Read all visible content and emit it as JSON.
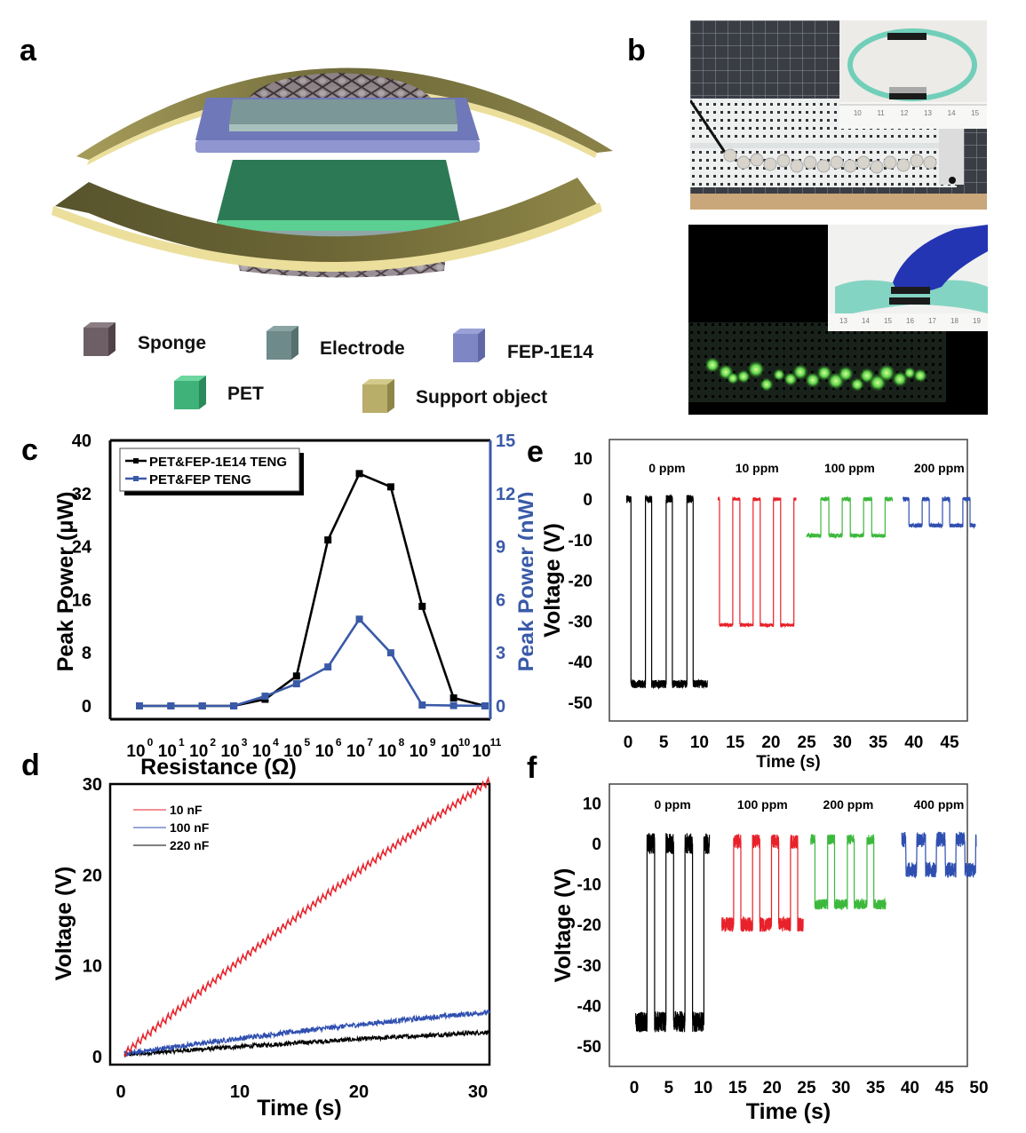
{
  "panels": {
    "a": {
      "letter": "a"
    },
    "b": {
      "letter": "b"
    },
    "c": {
      "letter": "c"
    },
    "d": {
      "letter": "d"
    },
    "e": {
      "letter": "e"
    },
    "f": {
      "letter": "f"
    }
  },
  "panel_a": {
    "legend": [
      {
        "label": "Sponge",
        "color": "#6e5f66"
      },
      {
        "label": "Electrode",
        "color": "#6f8a8a"
      },
      {
        "label": "FEP-1E14",
        "color": "#7e86c4"
      },
      {
        "label": "PET",
        "color": "#3fb27a"
      },
      {
        "label": "Support object",
        "color": "#b9ad6a"
      }
    ]
  },
  "panel_b": {
    "top_ruler_ticks": [
      "10",
      "11",
      "12",
      "13",
      "14",
      "15"
    ],
    "bottom_ruler_ticks": [
      "13",
      "14",
      "15",
      "16",
      "17",
      "18",
      "19"
    ]
  },
  "chart_data": [
    {
      "id": "c",
      "type": "line",
      "xlabel": "Resistance (Ω)",
      "ylabel": "Peak Power (μW)",
      "ylabel_right": "Peak Power (nW)",
      "categories": [
        "10^0",
        "10^1",
        "10^2",
        "10^3",
        "10^4",
        "10^5",
        "10^6",
        "10^7",
        "10^8",
        "10^9",
        "10^10",
        "10^11"
      ],
      "tick_exponents": [
        "0",
        "1",
        "2",
        "3",
        "4",
        "5",
        "6",
        "7",
        "8",
        "9",
        "10",
        "11"
      ],
      "ylim": [
        0,
        40
      ],
      "yticks": [
        0,
        8,
        16,
        24,
        32,
        40
      ],
      "ylim_right": [
        0,
        15
      ],
      "yticks_right": [
        0,
        3,
        6,
        9,
        12,
        15
      ],
      "legend_position": "top-left",
      "series": [
        {
          "name": "PET&FEP-1E14 TENG",
          "axis": "left",
          "color": "#000000",
          "values": [
            0,
            0,
            0,
            0,
            1.0,
            4.5,
            25,
            35,
            33,
            15,
            1.2,
            0
          ]
        },
        {
          "name": "PET&FEP TENG",
          "axis": "right",
          "color": "#3a5aa8",
          "values": [
            0,
            0,
            0,
            0,
            0.55,
            1.25,
            2.2,
            4.9,
            3.0,
            0.05,
            0.02,
            0
          ]
        }
      ]
    },
    {
      "id": "d",
      "type": "line",
      "xlabel": "Time (s)",
      "ylabel": "Voltage (V)",
      "xlim": [
        0,
        31
      ],
      "xticks": [
        0,
        10,
        20,
        30
      ],
      "ylim": [
        -0.3,
        30
      ],
      "yticks": [
        0,
        10,
        20,
        30
      ],
      "legend_position": "top-left",
      "series": [
        {
          "name": "10  nF",
          "color": "#e8212a",
          "t_start": 0.3,
          "t_end": 31,
          "v_start": 0.2,
          "v_end": 30.2,
          "curvature": 0.12,
          "ripple": 0.55,
          "ripple_period": 0.42
        },
        {
          "name": "100 nF",
          "color": "#2f4fb0",
          "t_start": 0.3,
          "t_end": 31,
          "v_start": 0.3,
          "v_end": 4.9,
          "curvature": 0.25,
          "ripple": 0.35,
          "ripple_period": 0.42
        },
        {
          "name": "220 nF",
          "color": "#000000",
          "t_start": 0.3,
          "t_end": 31,
          "v_start": 0.2,
          "v_end": 2.7,
          "curvature": 0.2,
          "ripple": 0.3,
          "ripple_period": 0.42
        }
      ]
    },
    {
      "id": "e",
      "type": "line",
      "xlabel": "Time (s)",
      "ylabel": "Voltage (V)",
      "xlim": [
        -2.6,
        47.6
      ],
      "xticks": [
        0,
        5,
        10,
        15,
        20,
        25,
        30,
        35,
        40,
        45
      ],
      "ylim": [
        -55.5,
        14.5
      ],
      "yticks": [
        10,
        0,
        -10,
        -20,
        -30,
        -40,
        -50
      ],
      "series": [
        {
          "name": "0 ppm",
          "color": "#000000",
          "t_start": -0.2,
          "t_end": 11.1,
          "high": 0,
          "low": -45.5,
          "period": 2.9,
          "duty_high": 0.3,
          "first_fall": 0.4,
          "noise": 1.0
        },
        {
          "name": "10 ppm",
          "color": "#e8212a",
          "t_start": 12.6,
          "t_end": 23.5,
          "high": 0,
          "low": -31,
          "period": 2.85,
          "duty_high": 0.35,
          "first_fall": 12.8,
          "noise": 0.4
        },
        {
          "name": "100 ppm",
          "color": "#3cb93c",
          "t_start": 25.0,
          "t_end": 37.0,
          "high": 0,
          "low": -9,
          "period": 3.0,
          "duty_high": 0.38,
          "first_fall": 25.1,
          "first_rise": 25.4,
          "noise": 0.5,
          "start_low": true
        },
        {
          "name": "200 ppm",
          "color": "#2f4fb0",
          "t_start": 38.5,
          "t_end": 48.6,
          "high": 0,
          "low": -6.5,
          "period": 2.85,
          "duty_high": 0.35,
          "first_fall": 39.3,
          "noise": 0.5
        }
      ]
    },
    {
      "id": "f",
      "type": "line",
      "xlabel": "Time (s)",
      "ylabel": "Voltage (V)",
      "xlim": [
        -1.2,
        50.6
      ],
      "xticks": [
        0,
        5,
        10,
        15,
        20,
        25,
        30,
        35,
        40,
        45,
        50
      ],
      "ylim": [
        -55.5,
        14.5
      ],
      "yticks": [
        10,
        0,
        -10,
        -20,
        -30,
        -40,
        -50
      ],
      "series": [
        {
          "name": "0 ppm",
          "color": "#000000",
          "t_start": 0.2,
          "t_end": 10.9,
          "high": 0,
          "low": -44,
          "period": 2.75,
          "duty_high": 0.4,
          "first_fall": 0.2,
          "first_rise": 1.0,
          "noise": 2.6,
          "start_low": true
        },
        {
          "name": "100 ppm",
          "color": "#e8212a",
          "t_start": 12.7,
          "t_end": 24.5,
          "high": 0.5,
          "low": -20,
          "period": 2.75,
          "duty_high": 0.38,
          "first_fall": 12.7,
          "first_rise": 13.8,
          "noise": 1.8,
          "start_low": true
        },
        {
          "name": "200 ppm",
          "color": "#3cb93c",
          "t_start": 25.6,
          "t_end": 36.5,
          "high": 1,
          "low": -15,
          "period": 2.85,
          "duty_high": 0.35,
          "first_fall": 26.2,
          "noise": 1.3
        },
        {
          "name": "400 ppm",
          "color": "#2f4fb0",
          "t_start": 38.8,
          "t_end": 49.6,
          "high": 1,
          "low": -6.5,
          "period": 2.85,
          "duty_high": 0.45,
          "first_fall": 39.4,
          "noise": 1.9,
          "smooth": true
        }
      ]
    }
  ]
}
